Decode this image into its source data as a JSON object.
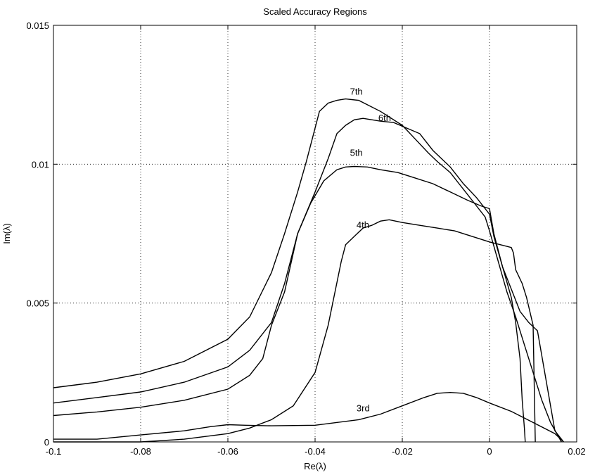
{
  "chart_data": {
    "type": "line",
    "title": "Scaled Accuracy Regions",
    "xlabel": "Re(λ)",
    "ylabel": "Im(λ)",
    "xlim": [
      -0.1,
      0.02
    ],
    "ylim": [
      0,
      0.015
    ],
    "grid": true,
    "x_ticks": [
      -0.1,
      -0.08,
      -0.06,
      -0.04,
      -0.02,
      0,
      0.02
    ],
    "x_tick_labels": [
      "-0.1",
      "-0.08",
      "-0.06",
      "-0.04",
      "-0.02",
      "0",
      "0.02"
    ],
    "y_ticks": [
      0,
      0.005,
      0.01,
      0.015
    ],
    "y_tick_labels": [
      "0",
      "0.005",
      "0.01",
      "0.015"
    ],
    "series": [
      {
        "name": "7th",
        "label_at": [
          -0.032,
          0.0125
        ],
        "x": [
          -0.1,
          -0.09,
          -0.08,
          -0.07,
          -0.06,
          -0.055,
          -0.05,
          -0.047,
          -0.044,
          -0.042,
          -0.039,
          -0.037,
          -0.035,
          -0.033,
          -0.03,
          -0.025,
          -0.02,
          -0.017,
          -0.014,
          -0.012,
          -0.009,
          -0.007,
          -0.005,
          -0.003,
          -0.001,
          0.0,
          0.002,
          0.004,
          0.006,
          0.008,
          0.01,
          0.012,
          0.014,
          0.0165
        ],
        "y": [
          0.00195,
          0.00215,
          0.00245,
          0.0029,
          0.0037,
          0.0045,
          0.0061,
          0.0075,
          0.009,
          0.0101,
          0.0119,
          0.0122,
          0.0123,
          0.01235,
          0.0123,
          0.0119,
          0.0114,
          0.0109,
          0.0104,
          0.0101,
          0.0097,
          0.0093,
          0.0089,
          0.0085,
          0.0081,
          0.0076,
          0.0065,
          0.0054,
          0.0045,
          0.0035,
          0.0025,
          0.0015,
          0.0007,
          0.0
        ]
      },
      {
        "name": "6th",
        "label_at": [
          -0.0255,
          0.01155
        ],
        "x": [
          -0.1,
          -0.09,
          -0.08,
          -0.07,
          -0.06,
          -0.055,
          -0.05,
          -0.047,
          -0.044,
          -0.04,
          -0.037,
          -0.035,
          -0.033,
          -0.031,
          -0.029,
          -0.027,
          -0.025,
          -0.022,
          -0.019,
          -0.016,
          -0.013,
          -0.009,
          -0.006,
          -0.003,
          -0.001,
          0.0,
          0.001,
          0.003,
          0.005,
          0.007,
          0.009,
          0.011,
          0.013,
          0.015,
          0.017
        ],
        "y": [
          0.0014,
          0.0016,
          0.0018,
          0.00215,
          0.0027,
          0.0033,
          0.0043,
          0.0057,
          0.0075,
          0.009,
          0.0102,
          0.0111,
          0.0114,
          0.0116,
          0.01165,
          0.0116,
          0.01155,
          0.0115,
          0.0113,
          0.0111,
          0.0105,
          0.0099,
          0.0093,
          0.0088,
          0.0084,
          0.0082,
          0.0074,
          0.0063,
          0.0055,
          0.0047,
          0.0043,
          0.004,
          0.0022,
          0.0004,
          0.0
        ]
      },
      {
        "name": "5th",
        "label_at": [
          -0.032,
          0.0103
        ],
        "x": [
          -0.1,
          -0.09,
          -0.08,
          -0.07,
          -0.06,
          -0.055,
          -0.052,
          -0.05,
          -0.047,
          -0.044,
          -0.041,
          -0.038,
          -0.035,
          -0.033,
          -0.031,
          -0.028,
          -0.025,
          -0.021,
          -0.017,
          -0.013,
          -0.009,
          -0.005,
          -0.002,
          0.0,
          0.001,
          0.003,
          0.005,
          0.006,
          0.007,
          0.0075,
          0.008,
          0.0082
        ],
        "y": [
          0.00095,
          0.00108,
          0.00125,
          0.0015,
          0.0019,
          0.0024,
          0.003,
          0.0042,
          0.0054,
          0.0075,
          0.0086,
          0.0094,
          0.0098,
          0.0099,
          0.00992,
          0.0099,
          0.0098,
          0.0097,
          0.0095,
          0.0093,
          0.009,
          0.0087,
          0.0085,
          0.0084,
          0.0075,
          0.0063,
          0.0052,
          0.0043,
          0.003,
          0.0015,
          0.0005,
          0.0
        ]
      },
      {
        "name": "4th",
        "label_at": [
          -0.0305,
          0.0077
        ],
        "x": [
          -0.1,
          -0.09,
          -0.08,
          -0.07,
          -0.06,
          -0.055,
          -0.05,
          -0.045,
          -0.04,
          -0.037,
          -0.034,
          -0.033,
          -0.031,
          -0.029,
          -0.027,
          -0.025,
          -0.023,
          -0.02,
          -0.016,
          -0.012,
          -0.008,
          -0.004,
          0.0,
          0.005,
          0.0055,
          0.006,
          0.0075,
          0.0085,
          0.01,
          0.0105
        ],
        "y": [
          0.0,
          0.0,
          0.0,
          0.0001,
          0.0003,
          0.0005,
          0.0008,
          0.0013,
          0.0025,
          0.0042,
          0.0065,
          0.0071,
          0.0074,
          0.0077,
          0.0078,
          0.00795,
          0.008,
          0.0079,
          0.0078,
          0.0077,
          0.0076,
          0.0074,
          0.0072,
          0.007,
          0.0068,
          0.0062,
          0.0057,
          0.0052,
          0.0042,
          0.0
        ]
      },
      {
        "name": "3rd",
        "label_at": [
          -0.0305,
          0.0011
        ],
        "x": [
          -0.1,
          -0.09,
          -0.08,
          -0.07,
          -0.064,
          -0.06,
          -0.056,
          -0.05,
          -0.04,
          -0.03,
          -0.025,
          -0.02,
          -0.015,
          -0.012,
          -0.009,
          -0.006,
          -0.003,
          0.0,
          0.005,
          0.01,
          0.015,
          0.017
        ],
        "y": [
          0.0001,
          0.0001,
          0.00025,
          0.0004,
          0.00055,
          0.00062,
          0.0006,
          0.00058,
          0.0006,
          0.0008,
          0.001,
          0.0013,
          0.0016,
          0.00175,
          0.00178,
          0.00175,
          0.0016,
          0.0014,
          0.0011,
          0.0007,
          0.0003,
          0.0
        ]
      }
    ]
  }
}
